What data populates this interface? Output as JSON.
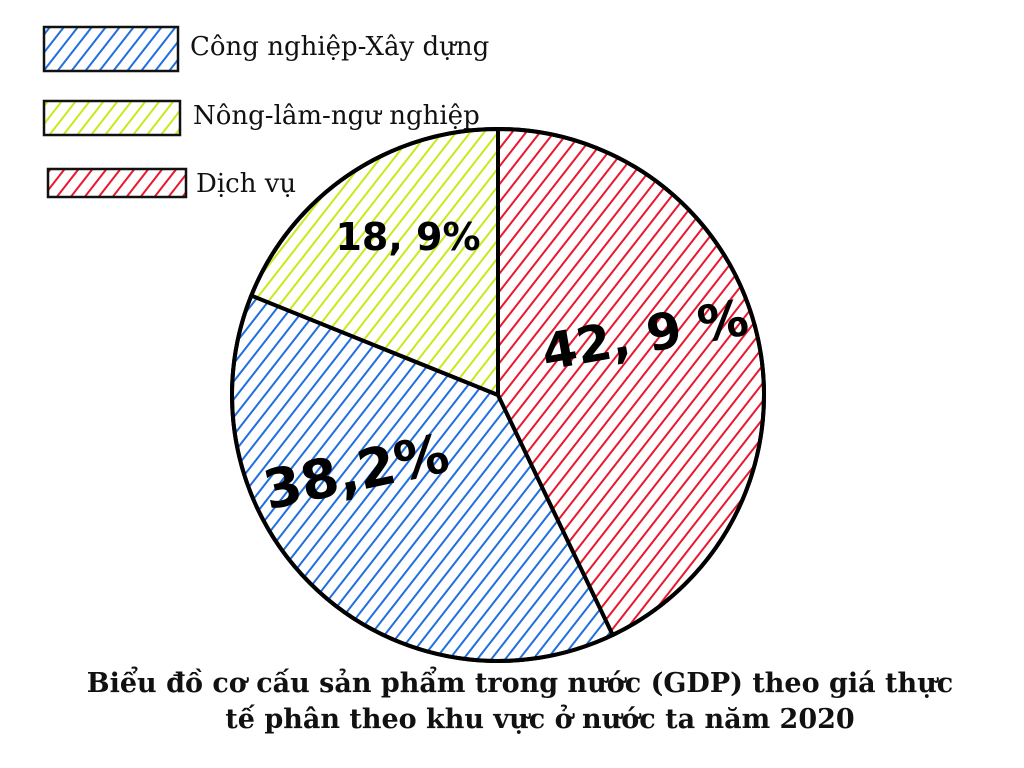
{
  "chart_data": {
    "type": "pie",
    "title_lines": [
      "Biểu đồ cơ cấu sản phẩm trong nước (GDP) theo giá thực",
      "tế phân theo khu vực ở nước ta năm 2020"
    ],
    "legend_position": "top-left",
    "slices": [
      {
        "name": "Công nghiệp-Xây dựng",
        "value": 38.2,
        "label": "38,2%",
        "color": "#1f6fe0"
      },
      {
        "name": "Nông-lâm-ngư nghiệp",
        "value": 18.9,
        "label": "18, 9%",
        "color": "#cbe81a"
      },
      {
        "name": "Dịch vụ",
        "value": 42.9,
        "label": "42, 9 %",
        "color": "#e8182e"
      }
    ]
  }
}
